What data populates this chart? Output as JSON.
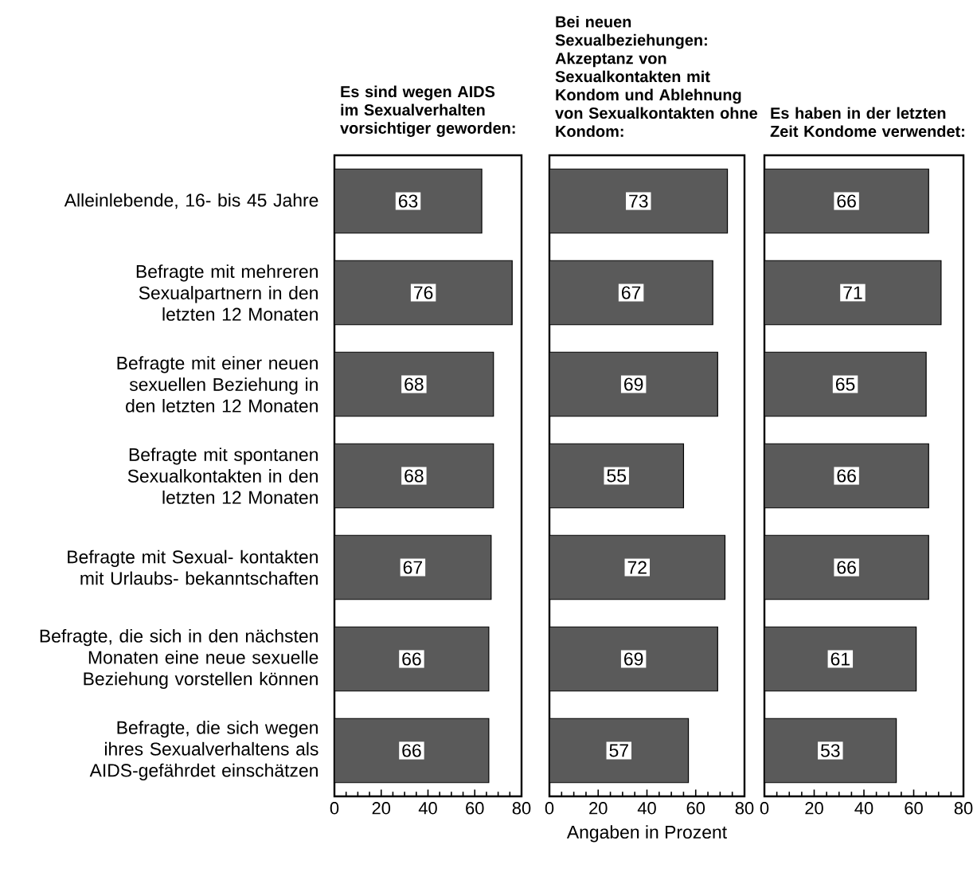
{
  "chart_data": [
    {
      "type": "bar",
      "orientation": "horizontal",
      "title": "Es sind wegen AIDS im Sexualverhalten vorsichtiger geworden:",
      "categories": [
        "Alleinlebende, 16- bis 45 Jahre",
        "Befragte mit mehreren Sexualpartnern in den letzten 12 Monaten",
        "Befragte mit einer neuen sexuellen Beziehung in den letzten 12 Monaten",
        "Befragte mit spontanen Sexualkontakten in den letzten 12 Monaten",
        "Befragte mit Sexual- kontakten mit Urlaubs- bekanntschaften",
        "Befragte, die sich in den nächsten Monaten eine neue sexuelle Beziehung vorstellen können",
        "Befragte, die sich wegen ihres Sexualverhaltens als AIDS-gefährdet einschätzen"
      ],
      "values": [
        63,
        76,
        68,
        68,
        67,
        66,
        66
      ],
      "color": "#5a5a5a",
      "data_labels": true,
      "xlim": [
        0,
        80
      ],
      "xticks": [
        0,
        20,
        40,
        60,
        80
      ]
    },
    {
      "type": "bar",
      "orientation": "horizontal",
      "title": "Bei neuen Sexualbeziehungen: Akzeptanz von Sexualkontakten mit Kondom und Ablehnung von Sexualkontakten ohne Kondom:",
      "xlabel": "Angaben in Prozent",
      "categories": [
        null,
        null,
        null,
        null,
        null,
        null,
        null
      ],
      "values": [
        73,
        67,
        69,
        55,
        72,
        69,
        57
      ],
      "color": "#5a5a5a",
      "data_labels": true,
      "xlim": [
        0,
        80
      ],
      "xticks": [
        0,
        20,
        40,
        60,
        80
      ],
      "tick_labels": "x"
    },
    {
      "type": "bar",
      "orientation": "horizontal",
      "title": "Es haben in der letzten Zeit Kondome verwendet:",
      "categories": [
        null,
        null,
        null,
        null,
        null,
        null,
        null
      ],
      "values": [
        66,
        71,
        65,
        66,
        66,
        61,
        53
      ],
      "color": "#5a5a5a",
      "data_labels": true,
      "xlim": [
        0,
        80
      ],
      "xticks": [
        0,
        20,
        40,
        60,
        80
      ],
      "tick_labels": "x"
    }
  ]
}
